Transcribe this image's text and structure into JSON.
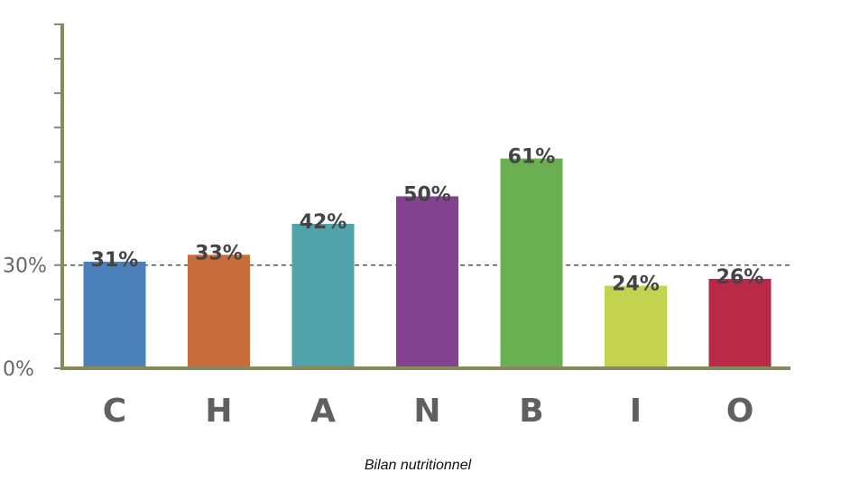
{
  "chart_data": {
    "type": "bar",
    "categories": [
      "C",
      "H",
      "A",
      "N",
      "B",
      "I",
      "O"
    ],
    "values": [
      31,
      33,
      42,
      50,
      61,
      24,
      26
    ],
    "value_labels": [
      "31%",
      "33%",
      "42%",
      "50%",
      "61%",
      "24%",
      "26%"
    ],
    "colors": [
      "#4a7fba",
      "#c96c3c",
      "#50a3a9",
      "#834390",
      "#6ab052",
      "#c3d350",
      "#b82a48"
    ],
    "ylim": [
      0,
      100
    ],
    "y_tick_labels": [
      {
        "value": 0,
        "label": "0%"
      },
      {
        "value": 30,
        "label": "30%"
      }
    ],
    "reference_line": 30,
    "xlabel": "Bilan nutritionnel",
    "ylabel": "",
    "grid": false,
    "axis_color": "#878a5b"
  }
}
